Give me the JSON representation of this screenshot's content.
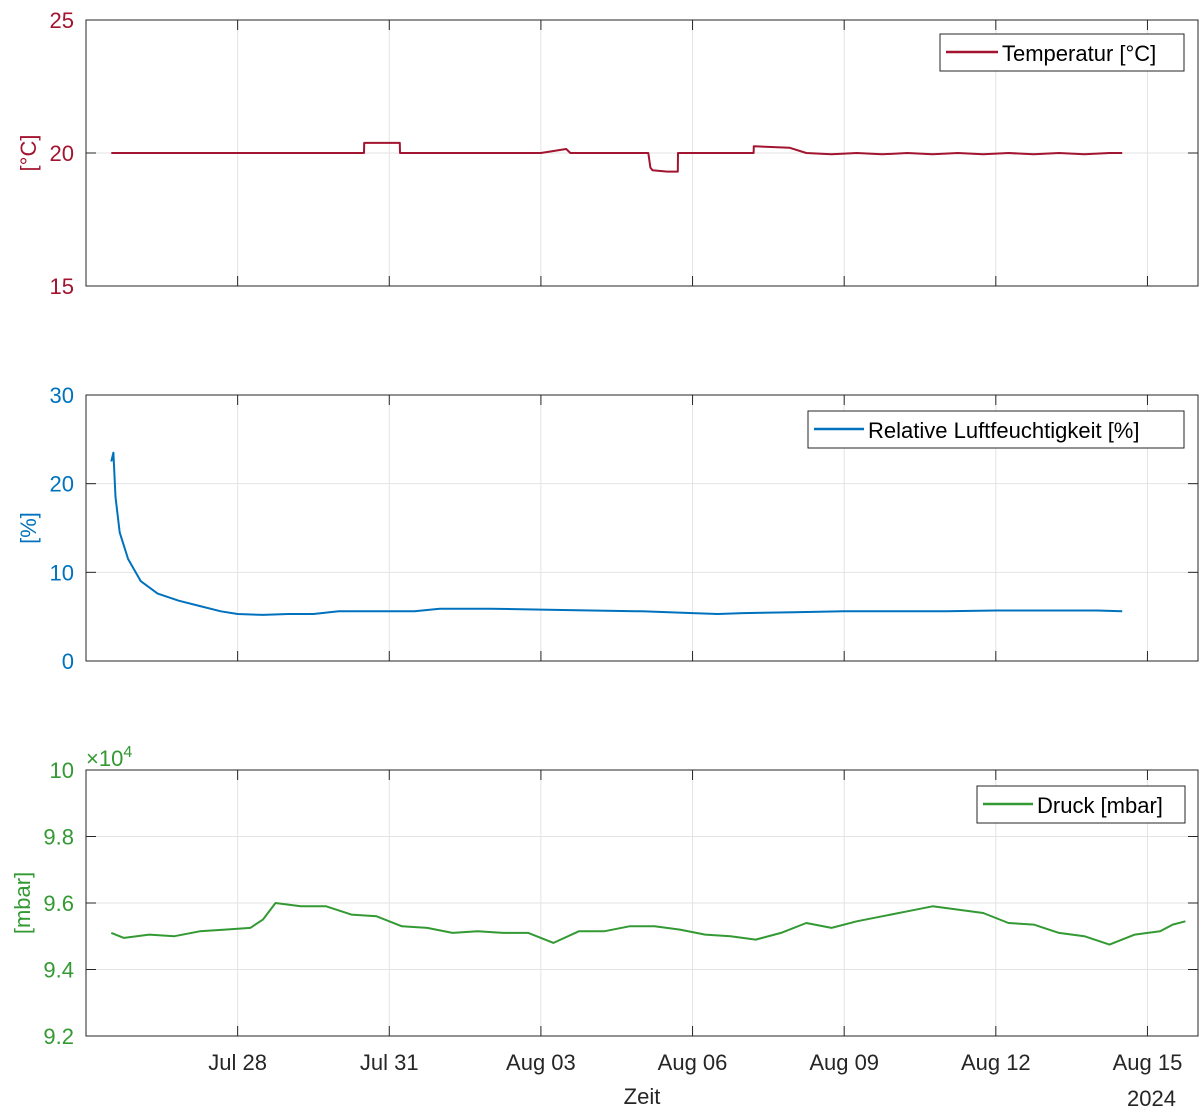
{
  "chart_data": [
    {
      "type": "line",
      "ylabel": "[°C]",
      "color": "#A2142F",
      "ylim": [
        15,
        25
      ],
      "yticks": [
        15,
        20,
        25
      ],
      "ytick_labels": [
        "15",
        "20",
        "25"
      ],
      "xlim": [
        "2024-07-25",
        "2024-08-16"
      ],
      "grid": true,
      "legend": {
        "location": "top-right",
        "label": "Temperatur [°C]"
      },
      "series": [
        {
          "name": "Temperatur [°C]",
          "x": [
            "2024-07-25 12:00",
            "2024-07-26 00:00",
            "2024-07-27 00:00",
            "2024-07-28 00:00",
            "2024-07-29 00:00",
            "2024-07-30 00:00",
            "2024-07-30 12:00",
            "2024-07-30 12:05",
            "2024-07-31 05:00",
            "2024-07-31 05:05",
            "2024-08-01 00:00",
            "2024-08-02 00:00",
            "2024-08-02 12:00",
            "2024-08-03 00:00",
            "2024-08-03 12:00",
            "2024-08-03 14:00",
            "2024-08-04 00:00",
            "2024-08-04 12:00",
            "2024-08-05 00:00",
            "2024-08-05 03:00",
            "2024-08-05 04:00",
            "2024-08-05 05:00",
            "2024-08-05 12:00",
            "2024-08-05 17:00",
            "2024-08-05 17:05",
            "2024-08-06 12:00",
            "2024-08-07 00:00",
            "2024-08-07 05:00",
            "2024-08-07 05:05",
            "2024-08-07 22:00",
            "2024-08-08 06:00",
            "2024-08-08 18:00",
            "2024-08-09 06:00",
            "2024-08-09 18:00",
            "2024-08-10 06:00",
            "2024-08-10 18:00",
            "2024-08-11 06:00",
            "2024-08-11 18:00",
            "2024-08-12 06:00",
            "2024-08-12 18:00",
            "2024-08-13 06:00",
            "2024-08-13 18:00",
            "2024-08-14 06:00",
            "2024-08-14 12:00"
          ],
          "y": [
            20.0,
            20.0,
            20.0,
            20.0,
            20.0,
            20.0,
            20.0,
            20.38,
            20.38,
            20.0,
            20.0,
            20.0,
            20.0,
            20.0,
            20.15,
            20.0,
            20.0,
            20.0,
            20.0,
            20.0,
            19.45,
            19.35,
            19.3,
            19.3,
            20.0,
            20.0,
            20.0,
            20.0,
            20.25,
            20.2,
            20.0,
            19.95,
            20.0,
            19.95,
            20.0,
            19.95,
            20.0,
            19.95,
            20.0,
            19.95,
            20.0,
            19.95,
            20.0,
            20.0
          ]
        }
      ]
    },
    {
      "type": "line",
      "ylabel": "[%]",
      "color": "#0072BD",
      "ylim": [
        0,
        30
      ],
      "yticks": [
        0,
        10,
        20,
        30
      ],
      "ytick_labels": [
        "0",
        "10",
        "20",
        "30"
      ],
      "xlim": [
        "2024-07-25",
        "2024-08-16"
      ],
      "grid": true,
      "legend": {
        "location": "top-right",
        "label": "Relative Luftfeuchtigkeit [%]"
      },
      "series": [
        {
          "name": "Relative Luftfeuchtigkeit [%]",
          "x": [
            "2024-07-25 12:00",
            "2024-07-25 13:00",
            "2024-07-25 14:00",
            "2024-07-25 16:00",
            "2024-07-25 20:00",
            "2024-07-26 02:00",
            "2024-07-26 10:00",
            "2024-07-26 20:00",
            "2024-07-27 06:00",
            "2024-07-27 16:00",
            "2024-07-28 00:00",
            "2024-07-28 12:00",
            "2024-07-29 00:00",
            "2024-07-29 12:00",
            "2024-07-30 00:00",
            "2024-07-30 12:00",
            "2024-07-31 00:00",
            "2024-07-31 12:00",
            "2024-08-01 00:00",
            "2024-08-02 00:00",
            "2024-08-03 00:00",
            "2024-08-04 00:00",
            "2024-08-05 00:00",
            "2024-08-06 00:00",
            "2024-08-06 12:00",
            "2024-08-07 00:00",
            "2024-08-08 00:00",
            "2024-08-09 00:00",
            "2024-08-10 00:00",
            "2024-08-11 00:00",
            "2024-08-12 00:00",
            "2024-08-13 00:00",
            "2024-08-14 00:00",
            "2024-08-14 12:00"
          ],
          "y": [
            22.5,
            23.5,
            18.5,
            14.5,
            11.5,
            9.0,
            7.6,
            6.8,
            6.2,
            5.6,
            5.3,
            5.2,
            5.3,
            5.3,
            5.6,
            5.6,
            5.6,
            5.6,
            5.9,
            5.9,
            5.8,
            5.7,
            5.6,
            5.4,
            5.3,
            5.4,
            5.5,
            5.6,
            5.6,
            5.6,
            5.7,
            5.7,
            5.7,
            5.6
          ]
        }
      ]
    },
    {
      "type": "line",
      "ylabel": "[mbar]",
      "xlabel": "Zeit",
      "color": "#339933",
      "ylim": [
        9.2,
        10
      ],
      "yticks": [
        9.2,
        9.4,
        9.6,
        9.8,
        10
      ],
      "ytick_labels": [
        "9.2",
        "9.4",
        "9.6",
        "9.8",
        "10"
      ],
      "exponent_label": "×10",
      "exponent_power": "4",
      "xlim": [
        "2024-07-25",
        "2024-08-16"
      ],
      "xticks": [
        "2024-07-28",
        "2024-07-31",
        "2024-08-03",
        "2024-08-06",
        "2024-08-09",
        "2024-08-12",
        "2024-08-15"
      ],
      "xtick_labels": [
        "Jul 28",
        "Jul 31",
        "Aug 03",
        "Aug 06",
        "Aug 09",
        "Aug 12",
        "Aug 15"
      ],
      "year_label": "2024",
      "grid": true,
      "legend": {
        "location": "top-right",
        "label": "Druck [mbar]"
      },
      "series": [
        {
          "name": "Druck [mbar]",
          "x": [
            "2024-07-25 12:00",
            "2024-07-25 18:00",
            "2024-07-26 06:00",
            "2024-07-26 18:00",
            "2024-07-27 06:00",
            "2024-07-27 18:00",
            "2024-07-28 06:00",
            "2024-07-28 12:00",
            "2024-07-28 18:00",
            "2024-07-29 06:00",
            "2024-07-29 18:00",
            "2024-07-30 06:00",
            "2024-07-30 18:00",
            "2024-07-31 06:00",
            "2024-07-31 18:00",
            "2024-08-01 06:00",
            "2024-08-01 18:00",
            "2024-08-02 06:00",
            "2024-08-02 18:00",
            "2024-08-03 06:00",
            "2024-08-03 18:00",
            "2024-08-04 06:00",
            "2024-08-04 18:00",
            "2024-08-05 06:00",
            "2024-08-05 18:00",
            "2024-08-06 06:00",
            "2024-08-06 18:00",
            "2024-08-07 06:00",
            "2024-08-07 18:00",
            "2024-08-08 06:00",
            "2024-08-08 18:00",
            "2024-08-09 06:00",
            "2024-08-09 18:00",
            "2024-08-10 06:00",
            "2024-08-10 18:00",
            "2024-08-11 06:00",
            "2024-08-11 18:00",
            "2024-08-12 06:00",
            "2024-08-12 18:00",
            "2024-08-13 06:00",
            "2024-08-13 18:00",
            "2024-08-14 06:00",
            "2024-08-14 18:00",
            "2024-08-15 06:00",
            "2024-08-15 12:00",
            "2024-08-15 18:00"
          ],
          "y": [
            9.51,
            9.495,
            9.505,
            9.5,
            9.515,
            9.52,
            9.525,
            9.55,
            9.6,
            9.59,
            9.59,
            9.565,
            9.56,
            9.53,
            9.525,
            9.51,
            9.515,
            9.51,
            9.51,
            9.48,
            9.515,
            9.515,
            9.53,
            9.53,
            9.52,
            9.505,
            9.5,
            9.49,
            9.51,
            9.54,
            9.525,
            9.545,
            9.56,
            9.575,
            9.59,
            9.58,
            9.57,
            9.54,
            9.535,
            9.51,
            9.5,
            9.475,
            9.505,
            9.515,
            9.535,
            9.545
          ]
        }
      ]
    }
  ]
}
